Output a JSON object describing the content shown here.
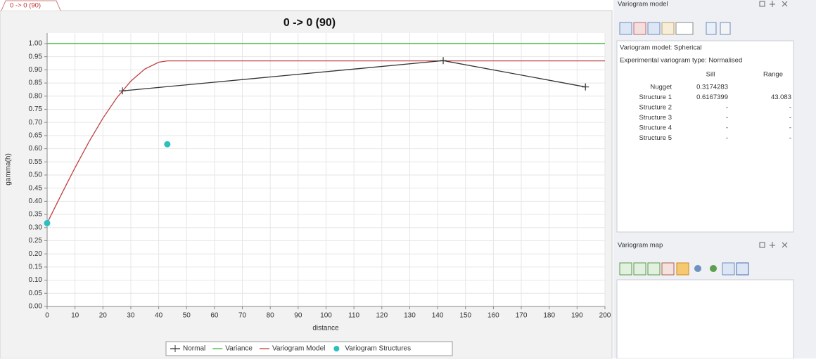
{
  "tab": "0 -> 0 (90)",
  "chart_data": {
    "type": "line",
    "title": "0 -> 0 (90)",
    "x_label": "distance",
    "y_label": "gamma(h)",
    "xlim": [
      0,
      200
    ],
    "ylim": [
      0,
      1.04
    ],
    "grid": true,
    "legend": "bottom",
    "xticks": [
      0,
      10,
      20,
      30,
      40,
      50,
      60,
      70,
      80,
      90,
      100,
      110,
      120,
      130,
      140,
      150,
      160,
      170,
      180,
      190,
      200
    ],
    "yticks": [
      {
        "value": 0,
        "label": "0.00"
      },
      {
        "value": 0.05,
        "label": "0.05"
      },
      {
        "value": 0.1,
        "label": "0.10"
      },
      {
        "value": 0.15,
        "label": "0.15"
      },
      {
        "value": 0.2,
        "label": "0.20"
      },
      {
        "value": 0.25,
        "label": "0.25"
      },
      {
        "value": 0.3,
        "label": "0.30"
      },
      {
        "value": 0.35,
        "label": "0.35"
      },
      {
        "value": 0.4,
        "label": "0.40"
      },
      {
        "value": 0.45,
        "label": "0.45"
      },
      {
        "value": 0.5,
        "label": "0.50"
      },
      {
        "value": 0.55,
        "label": "0.55"
      },
      {
        "value": 0.6,
        "label": "0.60"
      },
      {
        "value": 0.65,
        "label": "0.65"
      },
      {
        "value": 0.7,
        "label": "0.70"
      },
      {
        "value": 0.75,
        "label": "0.75"
      },
      {
        "value": 0.8,
        "label": "0.80"
      },
      {
        "value": 0.85,
        "label": "0.85"
      },
      {
        "value": 0.9,
        "label": "0.90"
      },
      {
        "value": 0.95,
        "label": "0.95"
      },
      {
        "value": 1,
        "label": "1.00"
      }
    ],
    "series": [
      {
        "name": "Normal",
        "color": "#333333",
        "marker": "plus",
        "x": [
          27,
          142,
          193
        ],
        "values": [
          0.82,
          0.935,
          0.835
        ]
      },
      {
        "name": "Variance",
        "color": "#3cb93c",
        "x": [
          0,
          200
        ],
        "values": [
          1,
          1
        ]
      },
      {
        "name": "Variogram Model",
        "color": "#c04040",
        "x": [
          0,
          5,
          10,
          15,
          20,
          25,
          30,
          35,
          40,
          43.083,
          200
        ],
        "values": [
          0.317,
          0.424,
          0.528,
          0.626,
          0.716,
          0.794,
          0.857,
          0.903,
          0.929,
          0.934,
          0.934
        ]
      },
      {
        "name": "Variogram Structures",
        "color": "#2bbfbf",
        "marker": "dot",
        "x": [
          0,
          43.083
        ],
        "values": [
          0.317,
          0.617
        ]
      }
    ]
  },
  "variogram_model": {
    "title": "Variogram model",
    "model": "Variogram model: Spherical",
    "exp_type": "Experimental variogram type: Normalised",
    "headers": [
      "Sill",
      "Range"
    ],
    "rows": [
      [
        "Nugget",
        "0.3174283"
      ],
      [
        "Structure 1",
        "0.6167399",
        "43.083"
      ],
      [
        "Structure 2",
        "-",
        "-"
      ],
      [
        "Structure 3",
        "-",
        "-"
      ],
      [
        "Structure 4",
        "-",
        "-"
      ],
      [
        "Structure 5",
        "-",
        "-"
      ]
    ]
  },
  "variogram_map": {
    "title": "Variogram map"
  }
}
